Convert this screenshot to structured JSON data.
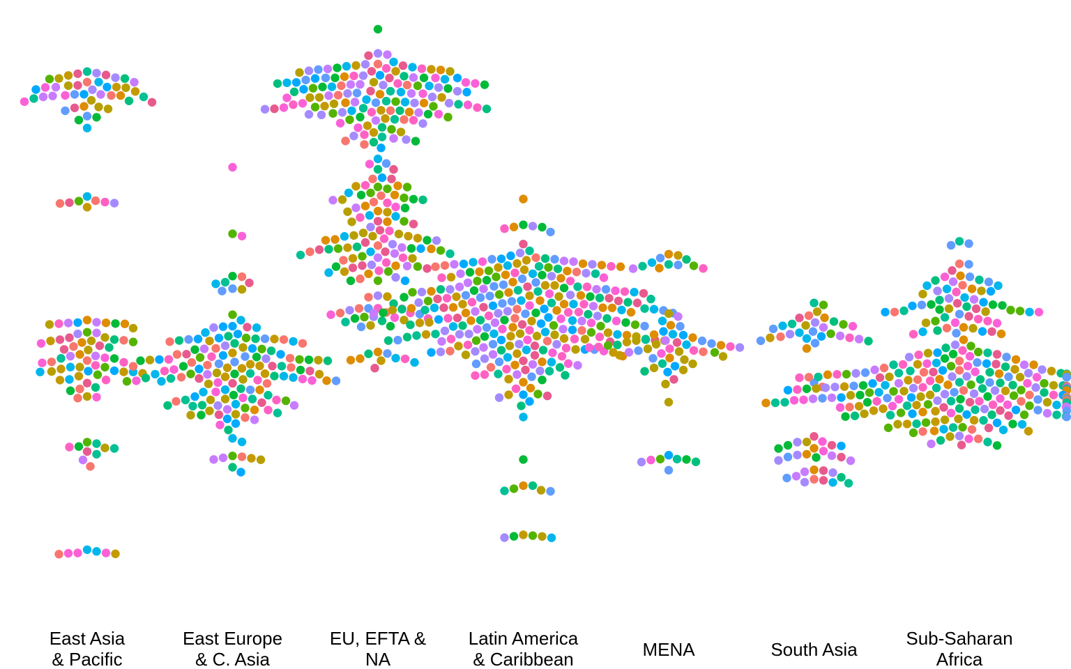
{
  "chart_data": {
    "type": "scatter",
    "subtype": "beeswarm",
    "title": "",
    "xlabel": "",
    "ylabel": "",
    "grid": false,
    "legend": "none",
    "y_axis_shown": false,
    "ylim": [
      0,
      100
    ],
    "point_colors": [
      "#F8766D",
      "#C49A00",
      "#53B400",
      "#00C094",
      "#00B6EB",
      "#A58AFF",
      "#FB61D7",
      "#E85A8E",
      "#619CFF",
      "#00A9FF",
      "#B79F00",
      "#00BA38",
      "#C77CFF",
      "#FF61C3",
      "#00BF7D",
      "#DE8C00"
    ],
    "categories": [
      {
        "key": "east-asia-pacific",
        "label_lines": [
          "East Asia",
          "& Pacific"
        ]
      },
      {
        "key": "east-europe-c-asia",
        "label_lines": [
          "East Europe",
          "& C. Asia"
        ]
      },
      {
        "key": "eu-efta-na",
        "label_lines": [
          "EU, EFTA &",
          "NA"
        ]
      },
      {
        "key": "latin-america-caribbean",
        "label_lines": [
          "Latin America",
          "& Caribbean"
        ]
      },
      {
        "key": "mena",
        "label_lines": [
          "MENA"
        ]
      },
      {
        "key": "south-asia",
        "label_lines": [
          "South Asia"
        ]
      },
      {
        "key": "sub-saharan-africa",
        "label_lines": [
          "Sub-Saharan",
          "Africa"
        ]
      }
    ],
    "series_points": [
      {
        "category": "east-asia-pacific",
        "clusters": [
          {
            "y": 88,
            "n": 45,
            "spread": 2.4
          },
          {
            "y": 69,
            "n": 8,
            "spread": 0.5
          },
          {
            "y": 43,
            "n": 62,
            "spread": 3.6
          },
          {
            "y": 26,
            "n": 10,
            "spread": 1.4
          },
          {
            "y": 9,
            "n": 7,
            "spread": 0.4
          }
        ]
      },
      {
        "category": "east-europe-c-asia",
        "clusters": [
          {
            "y": 75,
            "n": 1,
            "spread": 0
          },
          {
            "y": 63,
            "n": 2,
            "spread": 0.6
          },
          {
            "y": 55,
            "n": 8,
            "spread": 1
          },
          {
            "y": 40,
            "n": 140,
            "spread": 5.2
          },
          {
            "y": 25,
            "n": 8,
            "spread": 0.6
          }
        ]
      },
      {
        "category": "eu-efta-na",
        "clusters": [
          {
            "y": 87,
            "n": 140,
            "spread": 3.6
          },
          {
            "y": 69,
            "n": 45,
            "spread": 3.2
          },
          {
            "y": 60,
            "n": 55,
            "spread": 2.4
          },
          {
            "y": 50,
            "n": 25,
            "spread": 1.6
          },
          {
            "y": 42,
            "n": 10,
            "spread": 0.8
          }
        ]
      },
      {
        "category": "latin-america-caribbean",
        "clusters": [
          {
            "y": 50,
            "n": 290,
            "spread": 6.2
          },
          {
            "y": 20,
            "n": 6,
            "spread": 0.3
          },
          {
            "y": 12,
            "n": 6,
            "spread": 0.4
          }
        ]
      },
      {
        "category": "mena",
        "clusters": [
          {
            "y": 59,
            "n": 12,
            "spread": 1
          },
          {
            "y": 44,
            "n": 50,
            "spread": 3.2
          },
          {
            "y": 25,
            "n": 8,
            "spread": 0.6
          }
        ]
      },
      {
        "category": "south-asia",
        "clusters": [
          {
            "y": 48,
            "n": 30,
            "spread": 1.6
          },
          {
            "y": 38,
            "n": 2,
            "spread": 0.2
          },
          {
            "y": 27,
            "n": 18,
            "spread": 1.1
          },
          {
            "y": 22,
            "n": 12,
            "spread": 0.9
          }
        ]
      },
      {
        "category": "sub-saharan-africa",
        "clusters": [
          {
            "y": 62,
            "n": 3,
            "spread": 0.5
          },
          {
            "y": 50,
            "n": 65,
            "spread": 3.6
          },
          {
            "y": 36,
            "n": 230,
            "spread": 3.8
          }
        ]
      }
    ]
  }
}
